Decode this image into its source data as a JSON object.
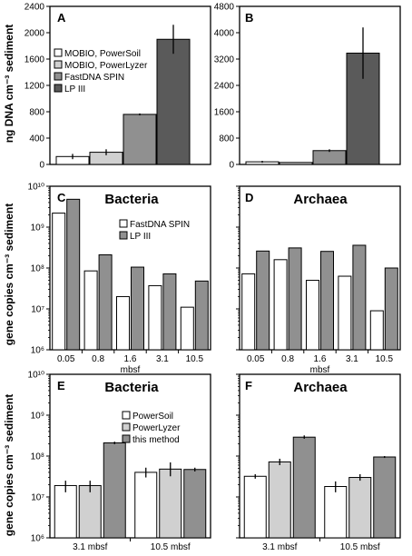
{
  "figure": {
    "ylabel_top": "ng DNA cm⁻³ sediment",
    "ylabel_mid": "gene copies cm⁻³ sediment",
    "ylabel_bot": "gene copies cm⁻³ sediment"
  },
  "colors": {
    "white": "#ffffff",
    "light": "#d0d0d0",
    "medium": "#909090",
    "dark": "#5a5a5a",
    "axis": "#000000"
  },
  "chart_data": [
    {
      "id": "A",
      "letter": "A",
      "type": "bar",
      "scale": "linear",
      "title": "",
      "xlabel": "",
      "ylabel": "ng DNA cm⁻³ sediment",
      "ylim": [
        0,
        2400
      ],
      "yticks": [
        0,
        400,
        800,
        1200,
        1600,
        2000,
        2400
      ],
      "categories": [
        ""
      ],
      "series": [
        {
          "name": "MOBIO, PowerSoil",
          "color": "#ffffff",
          "values": [
            120
          ],
          "errors": [
            40
          ]
        },
        {
          "name": "MOBIO, PowerLyzer",
          "color": "#d0d0d0",
          "values": [
            185
          ],
          "errors": [
            45
          ]
        },
        {
          "name": "FastDNA SPIN",
          "color": "#909090",
          "values": [
            760
          ],
          "errors": [
            15
          ]
        },
        {
          "name": "LP III",
          "color": "#5a5a5a",
          "values": [
            1900
          ],
          "errors": [
            220
          ]
        }
      ],
      "legend": "left"
    },
    {
      "id": "B",
      "letter": "B",
      "type": "bar",
      "scale": "linear",
      "title": "",
      "xlabel": "",
      "ylabel": "",
      "ylim": [
        0,
        4800
      ],
      "yticks": [
        0,
        800,
        1600,
        2400,
        3200,
        4000,
        4800
      ],
      "categories": [
        ""
      ],
      "series": [
        {
          "name": "MOBIO, PowerSoil",
          "color": "#ffffff",
          "values": [
            80
          ],
          "errors": [
            30
          ]
        },
        {
          "name": "MOBIO, PowerLyzer",
          "color": "#d0d0d0",
          "values": [
            60
          ],
          "errors": [
            0
          ]
        },
        {
          "name": "FastDNA SPIN",
          "color": "#909090",
          "values": [
            420
          ],
          "errors": [
            40
          ]
        },
        {
          "name": "LP III",
          "color": "#5a5a5a",
          "values": [
            3380
          ],
          "errors": [
            780
          ]
        }
      ]
    },
    {
      "id": "C",
      "letter": "C",
      "type": "bar",
      "scale": "log",
      "title": "Bacteria",
      "xlabel": "mbsf",
      "ylabel": "gene copies cm⁻³ sediment",
      "ylim": [
        1000000,
        10000000000
      ],
      "yticks": [
        "10⁶",
        "10⁷",
        "10⁸",
        "10⁹",
        "10¹⁰"
      ],
      "categories": [
        "0.05",
        "0.8",
        "1.6",
        "3.1",
        "10.5"
      ],
      "series": [
        {
          "name": "FastDNA SPIN",
          "color": "#ffffff",
          "values": [
            2200000000,
            85000000,
            20000000,
            37000000,
            11000000
          ]
        },
        {
          "name": "LP III",
          "color": "#909090",
          "values": [
            4800000000,
            210000000,
            105000000,
            72000000,
            48000000
          ]
        }
      ],
      "legend": "top-right"
    },
    {
      "id": "D",
      "letter": "D",
      "type": "bar",
      "scale": "log",
      "title": "Archaea",
      "xlabel": "mbsf",
      "ylabel": "",
      "ylim": [
        1000000,
        10000000000
      ],
      "yticks": [],
      "categories": [
        "0.05",
        "0.8",
        "1.6",
        "3.1",
        "10.5"
      ],
      "series": [
        {
          "name": "FastDNA SPIN",
          "color": "#ffffff",
          "values": [
            72000000,
            160000000,
            50000000,
            63000000,
            9000000
          ]
        },
        {
          "name": "LP III",
          "color": "#909090",
          "values": [
            260000000,
            310000000,
            255000000,
            360000000,
            100000000
          ]
        }
      ]
    },
    {
      "id": "E",
      "letter": "E",
      "type": "bar",
      "scale": "log",
      "title": "Bacteria",
      "xlabel": "",
      "ylabel": "gene copies cm⁻³ sediment",
      "ylim": [
        1000000,
        10000000000
      ],
      "yticks": [
        "10⁶",
        "10⁷",
        "10⁸",
        "10⁹",
        "10¹⁰"
      ],
      "categories": [
        "3.1 mbsf",
        "10.5 mbsf"
      ],
      "series": [
        {
          "name": "PowerSoil",
          "color": "#ffffff",
          "values": [
            19000000,
            40000000
          ],
          "errlo": [
            13000000,
            30000000
          ],
          "errhi": [
            25000000,
            52000000
          ]
        },
        {
          "name": "PowerLyzer",
          "color": "#d0d0d0",
          "values": [
            19000000,
            48000000
          ],
          "errlo": [
            13000000,
            32000000
          ],
          "errhi": [
            25000000,
            70000000
          ]
        },
        {
          "name": "this method",
          "color": "#909090",
          "values": [
            210000000,
            47000000
          ],
          "errlo": [
            195000000,
            42000000
          ],
          "errhi": [
            225000000,
            52000000
          ]
        }
      ],
      "legend": "top-right"
    },
    {
      "id": "F",
      "letter": "F",
      "type": "bar",
      "scale": "log",
      "title": "Archaea",
      "xlabel": "",
      "ylabel": "",
      "ylim": [
        1000000,
        10000000000
      ],
      "yticks": [],
      "categories": [
        "3.1 mbsf",
        "10.5 mbsf"
      ],
      "series": [
        {
          "name": "PowerSoil",
          "color": "#ffffff",
          "values": [
            32000000,
            18000000
          ],
          "errlo": [
            28000000,
            13000000
          ],
          "errhi": [
            36000000,
            24000000
          ]
        },
        {
          "name": "PowerLyzer",
          "color": "#d0d0d0",
          "values": [
            72000000,
            30000000
          ],
          "errlo": [
            60000000,
            25000000
          ],
          "errhi": [
            86000000,
            36000000
          ]
        },
        {
          "name": "this method",
          "color": "#909090",
          "values": [
            290000000,
            95000000
          ],
          "errlo": [
            265000000,
            90000000
          ],
          "errhi": [
            320000000,
            100000000
          ]
        }
      ]
    }
  ]
}
